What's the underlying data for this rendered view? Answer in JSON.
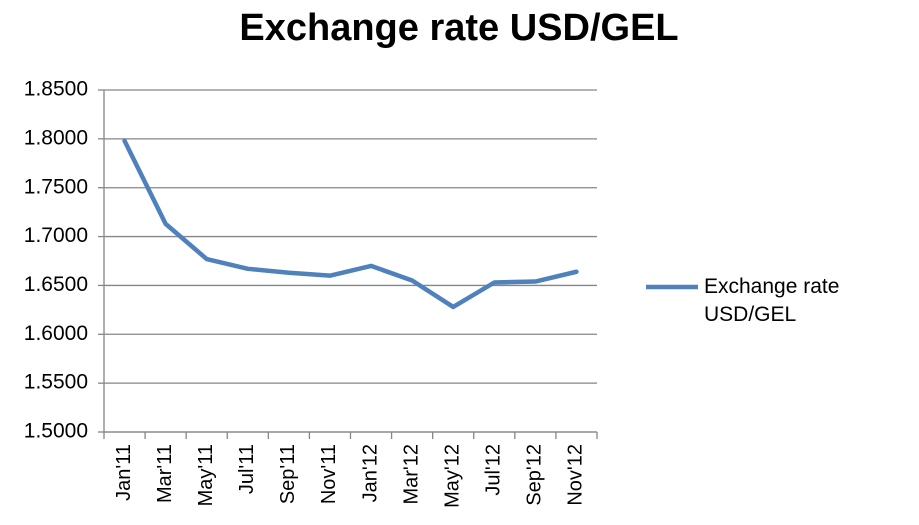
{
  "chart_data": {
    "type": "line",
    "title": "Exchange rate USD/GEL",
    "categories": [
      "Jan'11",
      "Mar'11",
      "May'11",
      "Jul'11",
      "Sep'11",
      "Nov'11",
      "Jan'12",
      "Mar'12",
      "May'12",
      "Jul'12",
      "Sep'12",
      "Nov'12"
    ],
    "series": [
      {
        "name": "Exchange rate USD/GEL",
        "color": "#4f81bd",
        "values": [
          1.798,
          1.713,
          1.677,
          1.667,
          1.663,
          1.66,
          1.67,
          1.655,
          1.628,
          1.653,
          1.654,
          1.664
        ]
      }
    ],
    "ylim": [
      1.5,
      1.85
    ],
    "yticks": [
      {
        "value": 1.5,
        "label": "1.5000"
      },
      {
        "value": 1.55,
        "label": "1.5500"
      },
      {
        "value": 1.6,
        "label": "1.6000"
      },
      {
        "value": 1.65,
        "label": "1.6500"
      },
      {
        "value": 1.7,
        "label": "1.7000"
      },
      {
        "value": 1.75,
        "label": "1.7500"
      },
      {
        "value": 1.8,
        "label": "1.8000"
      },
      {
        "value": 1.85,
        "label": "1.8500"
      }
    ],
    "grid": true,
    "legend": "right"
  }
}
